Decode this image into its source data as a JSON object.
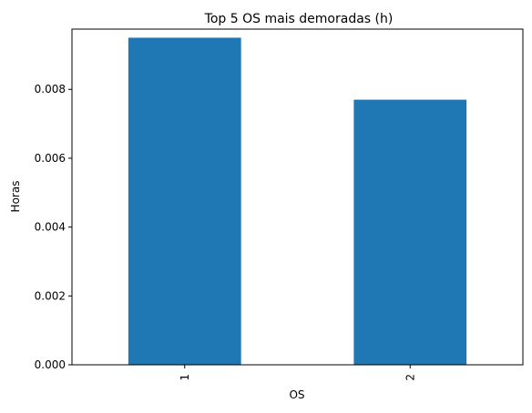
{
  "chart_data": {
    "type": "bar",
    "title": "Top 5 OS mais demoradas (h)",
    "xlabel": "OS",
    "ylabel": "Horas",
    "categories": [
      "1",
      "2"
    ],
    "values": [
      0.0095,
      0.0077
    ],
    "ylim": [
      0,
      0.00975
    ],
    "yticks": [
      0.0,
      0.002,
      0.004,
      0.006,
      0.008
    ],
    "ytick_labels": [
      "0.000",
      "0.002",
      "0.004",
      "0.006",
      "0.008"
    ],
    "xtick_rotation": "vertical",
    "grid": false,
    "legend": "none",
    "bar_color": "#1f77b4"
  }
}
